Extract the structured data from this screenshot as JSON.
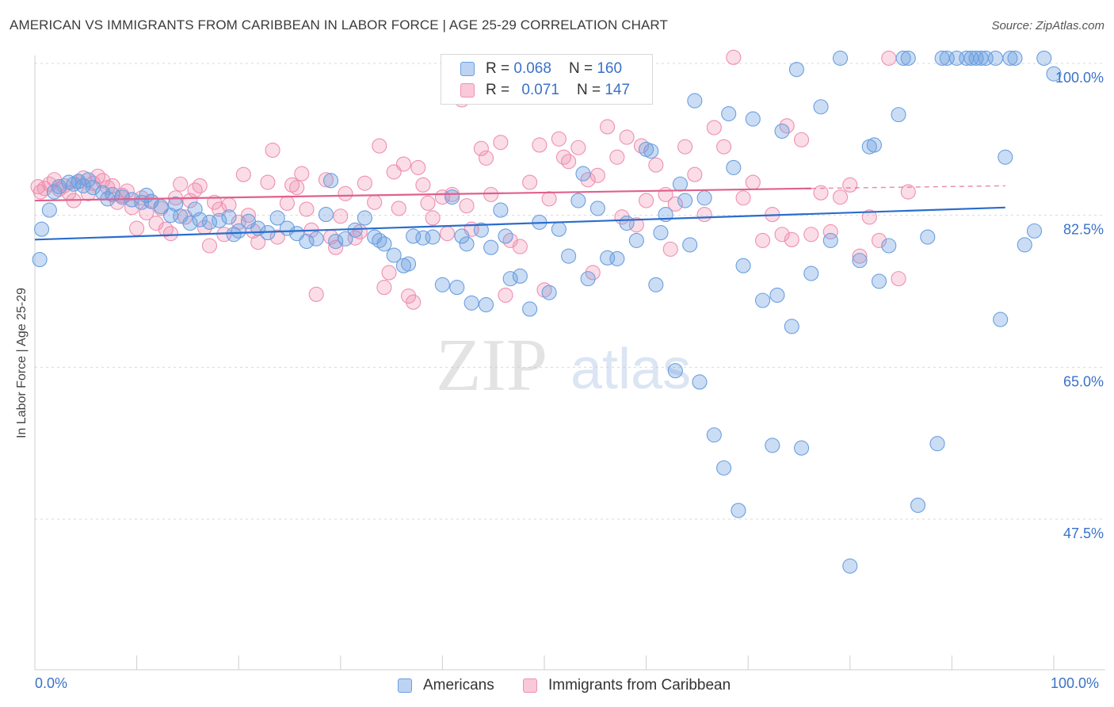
{
  "title": "AMERICAN VS IMMIGRANTS FROM CARIBBEAN IN LABOR FORCE | AGE 25-29 CORRELATION CHART",
  "source": "Source: ZipAtlas.com",
  "legend": {
    "r_label": "R =",
    "n_label": "N =",
    "rows": [
      {
        "r": "0.068",
        "n": "160"
      },
      {
        "r": "0.071",
        "n": "147"
      }
    ]
  },
  "watermark": {
    "zip": "ZIP",
    "atlas": "atlas"
  },
  "chart_data": {
    "type": "scatter",
    "xlabel": "",
    "ylabel": "In Labor Force | Age 25-29",
    "x_tick_labels": [
      "0.0%",
      "100.0%"
    ],
    "y_tick_labels": [
      "100.0%",
      "82.5%",
      "65.0%",
      "47.5%"
    ],
    "y_ticks": [
      100.0,
      82.5,
      65.0,
      47.5
    ],
    "xlim": [
      0,
      100
    ],
    "ylim": [
      32,
      102
    ],
    "grid": true,
    "legend_position": "top-center",
    "colors": {
      "americans": "#6b9fe0",
      "caribbean": "#f08fb0",
      "americans_line": "#2a6dcc",
      "caribbean_line": "#e0608c",
      "axis_text": "#3a72c8"
    },
    "series": [
      {
        "name": "Americans",
        "trend": {
          "x": [
            0,
            100
          ],
          "y": [
            79.7,
            83.4
          ]
        },
        "points": [
          [
            0.5,
            77.4
          ],
          [
            0.7,
            80.9
          ],
          [
            1.5,
            83.1
          ],
          [
            2,
            85.2
          ],
          [
            2.5,
            85.8
          ],
          [
            3.5,
            86.3
          ],
          [
            4,
            86.1
          ],
          [
            4.5,
            86.4
          ],
          [
            5,
            85.9
          ],
          [
            5.5,
            86.6
          ],
          [
            6,
            85.7
          ],
          [
            7,
            85.1
          ],
          [
            7.5,
            84.4
          ],
          [
            8,
            84.9
          ],
          [
            9,
            84.6
          ],
          [
            10,
            84.3
          ],
          [
            11,
            84.0
          ],
          [
            11.5,
            84.8
          ],
          [
            12,
            84.1
          ],
          [
            13,
            83.5
          ],
          [
            14,
            82.5
          ],
          [
            14.5,
            83.8
          ],
          [
            15,
            82.4
          ],
          [
            16,
            81.6
          ],
          [
            16.5,
            83.2
          ],
          [
            17,
            82.0
          ],
          [
            18,
            81.7
          ],
          [
            19,
            81.9
          ],
          [
            20,
            82.3
          ],
          [
            20.5,
            80.3
          ],
          [
            21,
            80.7
          ],
          [
            22,
            81.8
          ],
          [
            23,
            81.0
          ],
          [
            24,
            80.5
          ],
          [
            25,
            82.2
          ],
          [
            26,
            81.0
          ],
          [
            27,
            80.4
          ],
          [
            28,
            79.5
          ],
          [
            29,
            79.8
          ],
          [
            30,
            82.6
          ],
          [
            30.5,
            86.5
          ],
          [
            31,
            79.5
          ],
          [
            32,
            79.8
          ],
          [
            33,
            80.8
          ],
          [
            34,
            82.2
          ],
          [
            35,
            80.0
          ],
          [
            35.5,
            79.6
          ],
          [
            36,
            79.2
          ],
          [
            37,
            77.9
          ],
          [
            38,
            76.7
          ],
          [
            38.5,
            76.9
          ],
          [
            39,
            80.1
          ],
          [
            40,
            79.9
          ],
          [
            41,
            80.0
          ],
          [
            42,
            74.5
          ],
          [
            43,
            84.6
          ],
          [
            43.5,
            74.2
          ],
          [
            44,
            80.1
          ],
          [
            44.5,
            79.2
          ],
          [
            45,
            72.4
          ],
          [
            46,
            80.8
          ],
          [
            46.5,
            72.2
          ],
          [
            47,
            78.8
          ],
          [
            48,
            83.1
          ],
          [
            48.5,
            80.1
          ],
          [
            49,
            75.2
          ],
          [
            50,
            75.5
          ],
          [
            51,
            71.7
          ],
          [
            52,
            81.7
          ],
          [
            53,
            73.6
          ],
          [
            54,
            80.9
          ],
          [
            55,
            77.8
          ],
          [
            56,
            84.2
          ],
          [
            56.5,
            87.3
          ],
          [
            57,
            75.2
          ],
          [
            58,
            83.3
          ],
          [
            59,
            77.6
          ],
          [
            60,
            77.5
          ],
          [
            61,
            81.6
          ],
          [
            62,
            79.6
          ],
          [
            63,
            90.1
          ],
          [
            63.5,
            89.9
          ],
          [
            64,
            74.5
          ],
          [
            64.5,
            80.5
          ],
          [
            65,
            82.6
          ],
          [
            66,
            64.6
          ],
          [
            66.5,
            86.1
          ],
          [
            67,
            84.2
          ],
          [
            67.5,
            79.1
          ],
          [
            68,
            95.7
          ],
          [
            68.5,
            63.3
          ],
          [
            69,
            84.5
          ],
          [
            70,
            57.2
          ],
          [
            71,
            53.4
          ],
          [
            71.5,
            94.2
          ],
          [
            72,
            88.0
          ],
          [
            72.5,
            48.5
          ],
          [
            73,
            76.7
          ],
          [
            74,
            93.6
          ],
          [
            75,
            72.7
          ],
          [
            76,
            56.0
          ],
          [
            76.5,
            73.3
          ],
          [
            77,
            92.2
          ],
          [
            78,
            69.7
          ],
          [
            78.5,
            99.3
          ],
          [
            79,
            55.7
          ],
          [
            80,
            75.8
          ],
          [
            81,
            95.0
          ],
          [
            82,
            79.6
          ],
          [
            83,
            100.6
          ],
          [
            84,
            42.1
          ],
          [
            85,
            77.3
          ],
          [
            86,
            90.4
          ],
          [
            86.5,
            90.6
          ],
          [
            87,
            74.9
          ],
          [
            88,
            79.0
          ],
          [
            89,
            94.1
          ],
          [
            89.5,
            100.6
          ],
          [
            90,
            100.6
          ],
          [
            91,
            49.1
          ],
          [
            92,
            80.0
          ],
          [
            93,
            56.2
          ],
          [
            93.5,
            100.6
          ],
          [
            94,
            100.6
          ],
          [
            95,
            100.6
          ],
          [
            96,
            100.6
          ],
          [
            96.5,
            100.6
          ],
          [
            97,
            100.6
          ],
          [
            97.5,
            100.6
          ],
          [
            98,
            100.6
          ],
          [
            99,
            100.6
          ],
          [
            99.5,
            70.5
          ],
          [
            100,
            89.2
          ],
          [
            100.5,
            100.6
          ],
          [
            101,
            100.6
          ],
          [
            102,
            79.1
          ],
          [
            103,
            80.7
          ],
          [
            104,
            100.6
          ],
          [
            105,
            98.8
          ]
        ]
      },
      {
        "name": "Immigrants from Caribbean",
        "trend": {
          "x": [
            0,
            80
          ],
          "y": [
            84.2,
            85.6
          ]
        },
        "trend_dashed": {
          "x": [
            80,
            100
          ],
          "y": [
            85.6,
            85.9
          ]
        },
        "points": [
          [
            0.3,
            85.8
          ],
          [
            0.6,
            85.2
          ],
          [
            1,
            85.6
          ],
          [
            1.5,
            86.1
          ],
          [
            2,
            86.6
          ],
          [
            2.5,
            85.5
          ],
          [
            3,
            85.9
          ],
          [
            3.5,
            85.1
          ],
          [
            4,
            84.2
          ],
          [
            4.5,
            86.4
          ],
          [
            5,
            86.8
          ],
          [
            5.5,
            85.0
          ],
          [
            6,
            86.2
          ],
          [
            6.5,
            87.0
          ],
          [
            7,
            86.5
          ],
          [
            7.5,
            85.7
          ],
          [
            8,
            85.9
          ],
          [
            8.5,
            84.0
          ],
          [
            9,
            84.8
          ],
          [
            9.5,
            85.3
          ],
          [
            10,
            83.4
          ],
          [
            10.5,
            81.0
          ],
          [
            11,
            84.5
          ],
          [
            11.5,
            82.8
          ],
          [
            12,
            84.1
          ],
          [
            12.5,
            81.6
          ],
          [
            13,
            83.3
          ],
          [
            13.5,
            80.9
          ],
          [
            14,
            80.4
          ],
          [
            14.5,
            84.5
          ],
          [
            15,
            86.1
          ],
          [
            15.5,
            82.3
          ],
          [
            16,
            84.2
          ],
          [
            16.5,
            85.4
          ],
          [
            17,
            85.9
          ],
          [
            17.5,
            81.1
          ],
          [
            18,
            79.0
          ],
          [
            18.5,
            84.0
          ],
          [
            19,
            83.2
          ],
          [
            19.5,
            80.3
          ],
          [
            20,
            83.7
          ],
          [
            21,
            81.7
          ],
          [
            21.5,
            87.2
          ],
          [
            22,
            82.5
          ],
          [
            22.5,
            80.7
          ],
          [
            23,
            79.4
          ],
          [
            24,
            86.3
          ],
          [
            24.5,
            90.0
          ],
          [
            25,
            80.0
          ],
          [
            26,
            83.9
          ],
          [
            26.5,
            86.0
          ],
          [
            27,
            85.7
          ],
          [
            27.5,
            87.3
          ],
          [
            28,
            83.2
          ],
          [
            28.5,
            80.8
          ],
          [
            29,
            73.4
          ],
          [
            30,
            86.6
          ],
          [
            30.5,
            80.0
          ],
          [
            31,
            78.8
          ],
          [
            31.5,
            82.4
          ],
          [
            32,
            85.0
          ],
          [
            33,
            79.9
          ],
          [
            33.5,
            80.6
          ],
          [
            34,
            86.2
          ],
          [
            35,
            84.0
          ],
          [
            35.5,
            90.5
          ],
          [
            36,
            74.2
          ],
          [
            36.5,
            75.9
          ],
          [
            37,
            87.5
          ],
          [
            37.5,
            83.3
          ],
          [
            38,
            88.4
          ],
          [
            38.5,
            73.2
          ],
          [
            39,
            72.5
          ],
          [
            39.5,
            88.0
          ],
          [
            40,
            86.0
          ],
          [
            40.5,
            83.9
          ],
          [
            41,
            82.2
          ],
          [
            42,
            84.6
          ],
          [
            42.5,
            80.4
          ],
          [
            43,
            84.9
          ],
          [
            44,
            95.8
          ],
          [
            44.5,
            83.6
          ],
          [
            45,
            80.9
          ],
          [
            46,
            90.2
          ],
          [
            46.5,
            89.1
          ],
          [
            47,
            84.9
          ],
          [
            48,
            90.9
          ],
          [
            48.5,
            73.3
          ],
          [
            49,
            79.6
          ],
          [
            50,
            78.9
          ],
          [
            51,
            86.3
          ],
          [
            52,
            90.6
          ],
          [
            52.5,
            73.9
          ],
          [
            53,
            84.4
          ],
          [
            54,
            91.3
          ],
          [
            54.5,
            89.2
          ],
          [
            55,
            88.7
          ],
          [
            56,
            90.3
          ],
          [
            57,
            86.6
          ],
          [
            57.5,
            75.9
          ],
          [
            58,
            87.1
          ],
          [
            59,
            92.7
          ],
          [
            60,
            89.2
          ],
          [
            60.5,
            82.3
          ],
          [
            61,
            91.5
          ],
          [
            62,
            81.4
          ],
          [
            62.5,
            90.5
          ],
          [
            63,
            84.2
          ],
          [
            64,
            88.3
          ],
          [
            65,
            84.9
          ],
          [
            65.5,
            78.6
          ],
          [
            66,
            83.8
          ],
          [
            67,
            90.4
          ],
          [
            68,
            87.2
          ],
          [
            69,
            82.6
          ],
          [
            70,
            92.6
          ],
          [
            71,
            90.4
          ],
          [
            72,
            100.7
          ],
          [
            73,
            84.5
          ],
          [
            74,
            86.3
          ],
          [
            75,
            79.6
          ],
          [
            76,
            82.6
          ],
          [
            77,
            80.3
          ],
          [
            77.5,
            92.8
          ],
          [
            78,
            79.7
          ],
          [
            79,
            91.2
          ],
          [
            80,
            80.3
          ],
          [
            81,
            85.1
          ],
          [
            82,
            80.6
          ],
          [
            83,
            84.6
          ],
          [
            84,
            86.0
          ],
          [
            85,
            77.8
          ],
          [
            86,
            82.3
          ],
          [
            87,
            79.6
          ],
          [
            88,
            100.6
          ],
          [
            89,
            75.2
          ],
          [
            90,
            85.2
          ]
        ]
      }
    ]
  },
  "bottom_legend": [
    {
      "label": "Americans"
    },
    {
      "label": "Immigrants from Caribbean"
    }
  ]
}
